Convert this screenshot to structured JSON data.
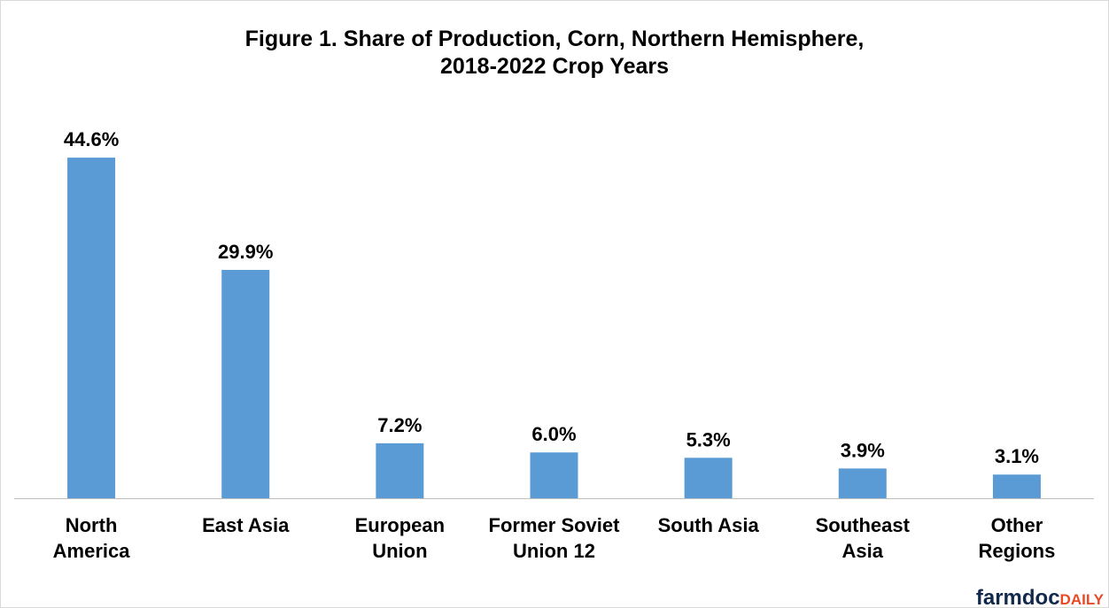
{
  "chart_data": {
    "type": "bar",
    "title": [
      "Figure 1.  Share of Production, Corn, Northern Hemisphere,",
      "2018-2022 Crop Years"
    ],
    "categories": [
      [
        "North",
        "America"
      ],
      [
        "East Asia"
      ],
      [
        "European",
        "Union"
      ],
      [
        "Former Soviet",
        "Union 12"
      ],
      [
        "South Asia"
      ],
      [
        "Southeast",
        "Asia"
      ],
      [
        "Other",
        "Regions"
      ]
    ],
    "values": [
      44.6,
      29.9,
      7.2,
      6.0,
      5.3,
      3.9,
      3.1
    ],
    "value_labels": [
      "44.6%",
      "29.9%",
      "7.2%",
      "6.0%",
      "5.3%",
      "3.9%",
      "3.1%"
    ],
    "color": "#5b9bd5",
    "logo": {
      "main": "farmdoc",
      "accent": "DAILY"
    }
  }
}
